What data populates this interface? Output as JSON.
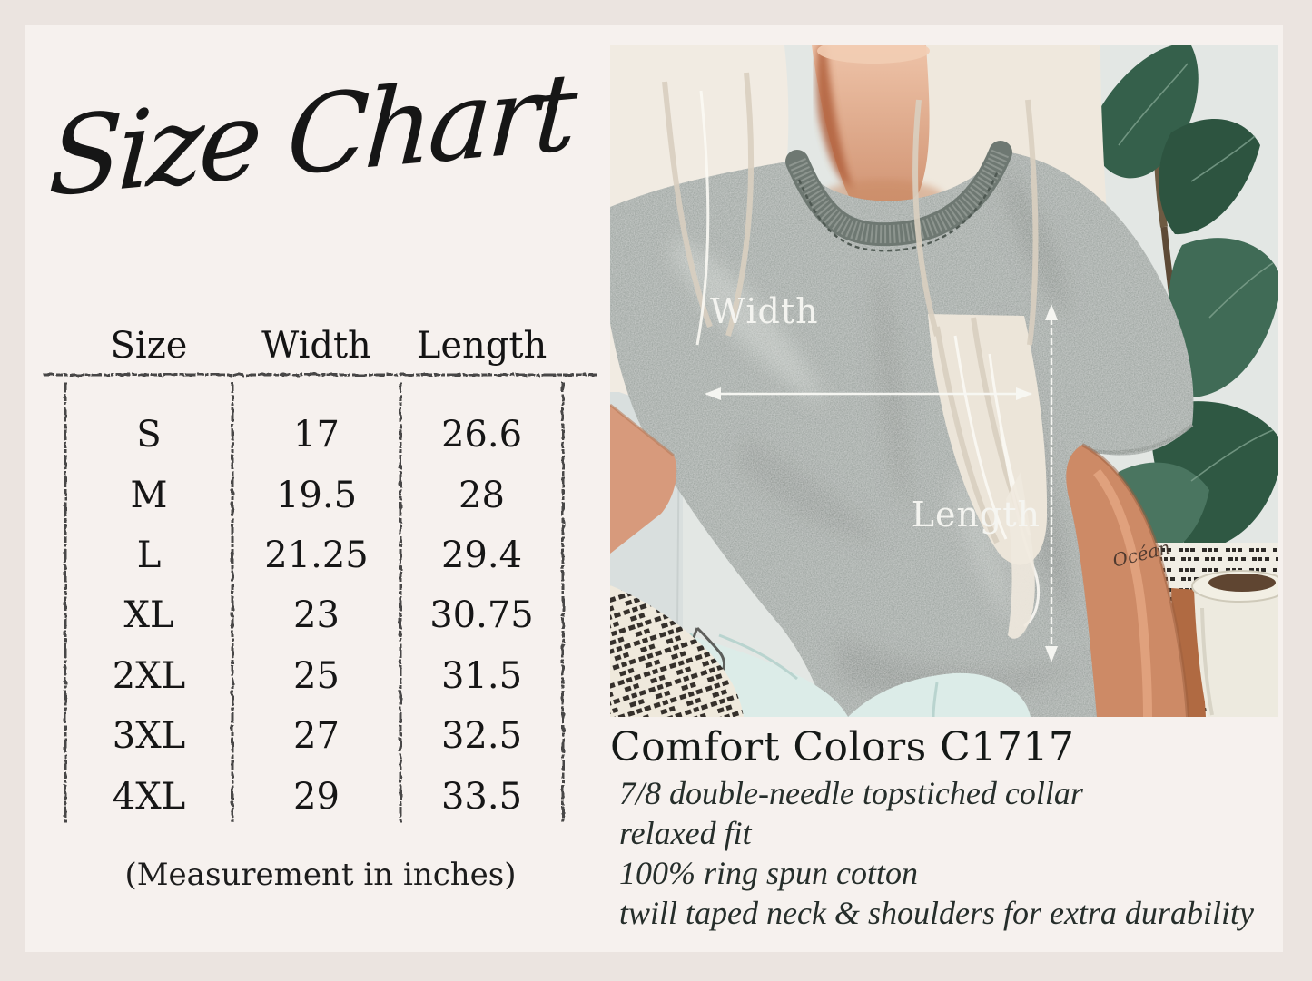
{
  "page": {
    "title": "Size Chart",
    "note": "(Measurement in inches)"
  },
  "size_table": {
    "headers": [
      "Size",
      "Width",
      "Length"
    ],
    "rows": [
      {
        "size": "S",
        "width": "17",
        "length": "26.6"
      },
      {
        "size": "M",
        "width": "19.5",
        "length": "28"
      },
      {
        "size": "L",
        "width": "21.25",
        "length": "29.4"
      },
      {
        "size": "XL",
        "width": "23",
        "length": "30.75"
      },
      {
        "size": "2XL",
        "width": "25",
        "length": "31.5"
      },
      {
        "size": "3XL",
        "width": "27",
        "length": "32.5"
      },
      {
        "size": "4XL",
        "width": "29",
        "length": "33.5"
      }
    ]
  },
  "product": {
    "name": "Comfort Colors C1717",
    "features": [
      "7/8 double-needle topstiched collar",
      "relaxed fit",
      "100% ring spun cotton",
      "twill taped neck & shoulders for extra durability"
    ]
  },
  "photo": {
    "width_label": "Width",
    "length_label": "Length",
    "tattoo_text": "Océan"
  },
  "colors": {
    "outer_border": "#ebe4e0",
    "panel_bg": "#f6f1ee",
    "text": "#161616",
    "tee_gray": "#939b96",
    "collar_gray": "#6e7872",
    "leaf_green": "#38604c",
    "wall": "#e3e7e4",
    "hair": "#efe8dd",
    "skin": "#d79a7c",
    "jeans": "#dcece8",
    "arrow_white": "#f8f8f4"
  }
}
